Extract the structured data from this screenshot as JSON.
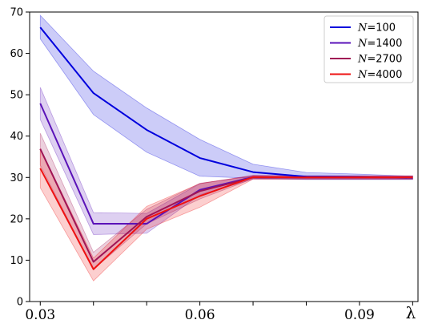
{
  "chart_data": {
    "type": "line",
    "title": "",
    "xlabel": "λ",
    "ylabel": "",
    "x": [
      0.03,
      0.04,
      0.05,
      0.06,
      0.07,
      0.08,
      0.09,
      0.1
    ],
    "xlim": [
      0.028,
      0.101
    ],
    "ylim": [
      0,
      70
    ],
    "xticks": [
      0.03,
      0.06,
      0.09
    ],
    "xtick_labels": [
      "0.03",
      "0.06",
      "0.09"
    ],
    "yticks": [
      0,
      10,
      20,
      30,
      40,
      50,
      60,
      70
    ],
    "ytick_labels": [
      "0",
      "10",
      "20",
      "30",
      "40",
      "50",
      "60",
      "70"
    ],
    "legend_position": "top-right",
    "grid": false,
    "series": [
      {
        "name": "N=100",
        "legend_var": "N",
        "legend_rest": "=100",
        "color": "#0000dd",
        "values": [
          66.3,
          50.4,
          41.5,
          34.7,
          31.3,
          30.2,
          30.1,
          29.9
        ],
        "lower": [
          63.5,
          45.2,
          36.1,
          30.3,
          29.8,
          29.5,
          29.5,
          29.5
        ],
        "upper": [
          69.2,
          55.7,
          46.8,
          39.2,
          33.2,
          31.2,
          30.8,
          30.3
        ]
      },
      {
        "name": "N=1400",
        "legend_var": "N",
        "legend_rest": "=1400",
        "color": "#5a12b8",
        "values": [
          47.9,
          18.8,
          18.8,
          27.0,
          30.1,
          30.0,
          30.0,
          30.0
        ],
        "lower": [
          44.0,
          16.2,
          16.5,
          25.8,
          29.6,
          29.6,
          29.6,
          29.6
        ],
        "upper": [
          51.8,
          21.5,
          21.3,
          28.5,
          30.5,
          30.4,
          30.4,
          30.4
        ]
      },
      {
        "name": "N=2700",
        "legend_var": "N",
        "legend_rest": "=2700",
        "color": "#a01455",
        "values": [
          36.9,
          9.6,
          20.5,
          26.7,
          30.0,
          30.0,
          30.0,
          30.0
        ],
        "lower": [
          33.0,
          7.8,
          18.8,
          24.8,
          29.7,
          29.7,
          29.7,
          29.7
        ],
        "upper": [
          40.7,
          11.9,
          22.3,
          28.6,
          30.3,
          30.3,
          30.3,
          30.3
        ]
      },
      {
        "name": "N=4000",
        "legend_var": "N",
        "legend_rest": "=4000",
        "color": "#ee1111",
        "values": [
          32.2,
          7.8,
          20.0,
          25.5,
          30.1,
          30.0,
          30.0,
          30.0
        ],
        "lower": [
          27.5,
          5.0,
          17.5,
          22.8,
          29.6,
          29.6,
          29.6,
          29.6
        ],
        "upper": [
          37.0,
          10.5,
          23.0,
          28.5,
          30.5,
          30.4,
          30.4,
          30.4
        ]
      }
    ]
  }
}
